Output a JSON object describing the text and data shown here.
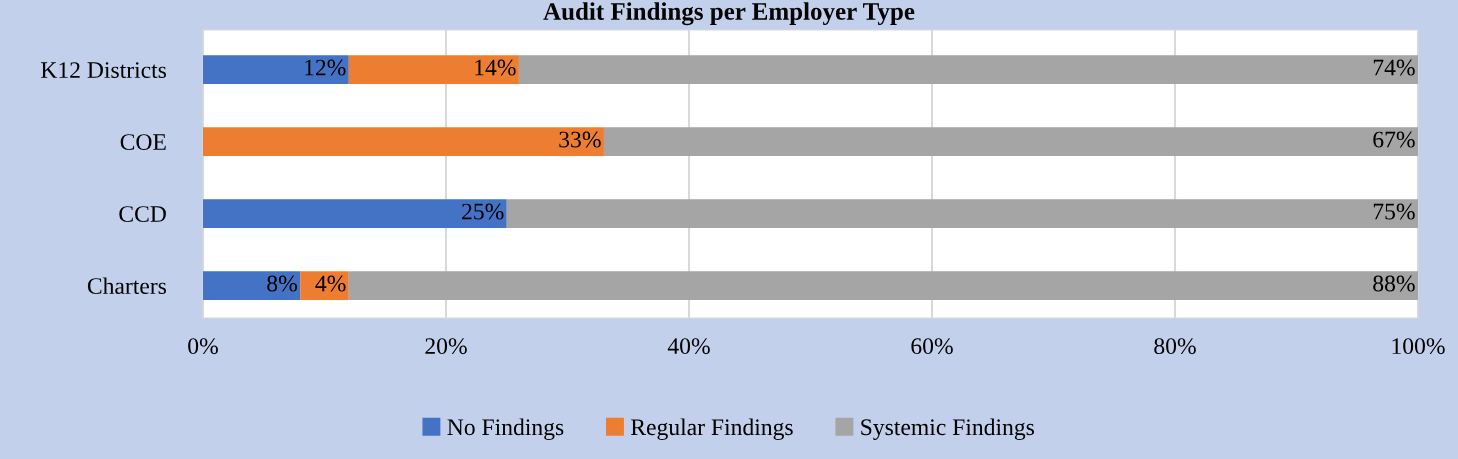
{
  "chart_data": {
    "type": "bar",
    "orientation": "horizontal",
    "stacked": true,
    "title": "Audit Findings per Employer Type",
    "categories": [
      "K12 Districts",
      "COE",
      "CCD",
      "Charters"
    ],
    "series": [
      {
        "name": "No Findings",
        "color": "#4472c4",
        "values": [
          12,
          0,
          25,
          8
        ],
        "value_labels": [
          "12%",
          null,
          "25%",
          "8%"
        ]
      },
      {
        "name": "Regular Findings",
        "color": "#ed7d31",
        "values": [
          14,
          33,
          0,
          4
        ],
        "value_labels": [
          "14%",
          "33%",
          null,
          "4%"
        ]
      },
      {
        "name": "Systemic Findings",
        "color": "#a5a5a5",
        "values": [
          74,
          67,
          75,
          88
        ],
        "value_labels": [
          "74%",
          "67%",
          "75%",
          "88%"
        ]
      }
    ],
    "xlim": [
      0,
      100
    ],
    "xticks": [
      {
        "value": 0,
        "label": "0%"
      },
      {
        "value": 20,
        "label": "20%"
      },
      {
        "value": 40,
        "label": "40%"
      },
      {
        "value": 60,
        "label": "60%"
      },
      {
        "value": 80,
        "label": "80%"
      },
      {
        "value": 100,
        "label": "100%"
      }
    ],
    "grid": "x",
    "legend": "bottom"
  }
}
